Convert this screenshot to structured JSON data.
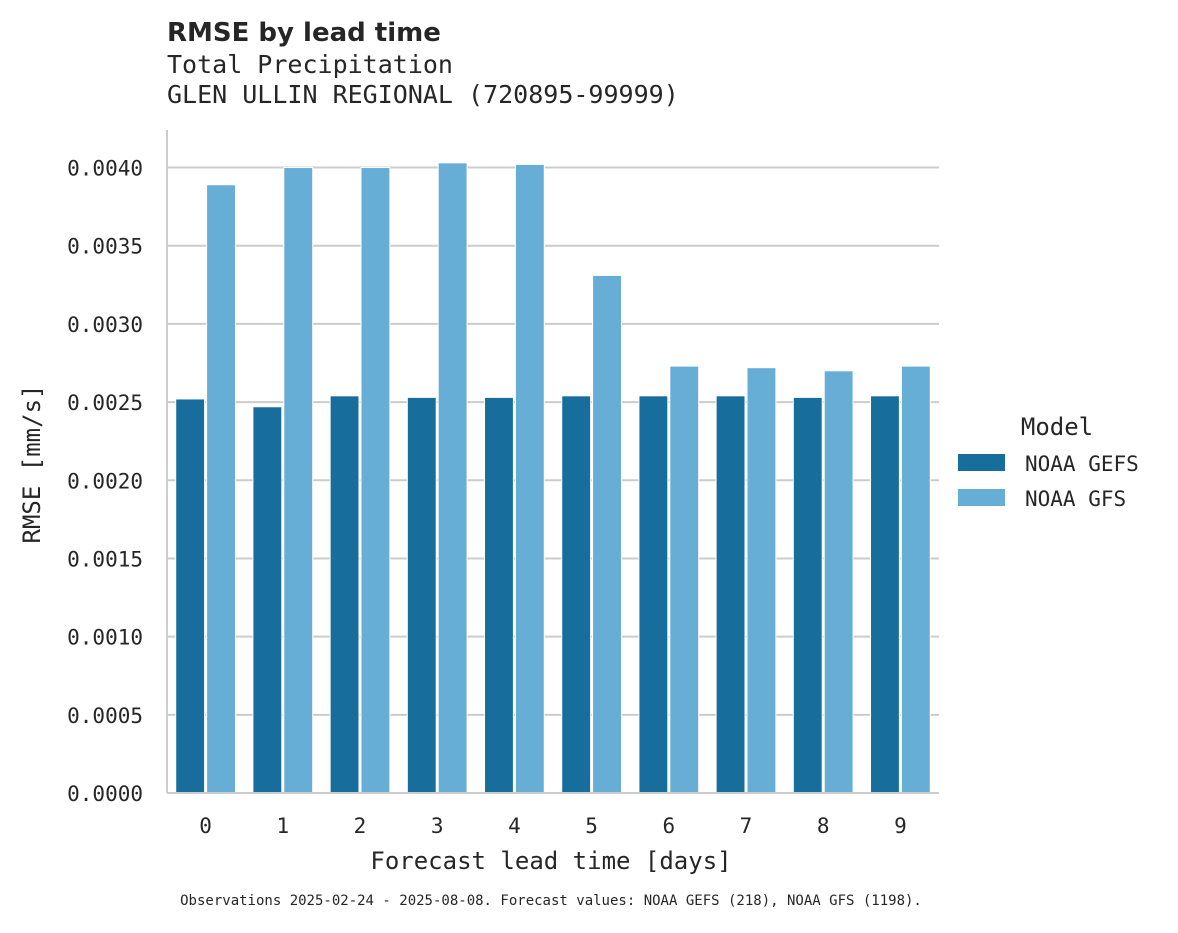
{
  "chart_data": {
    "type": "bar",
    "title": "RMSE by lead time",
    "subtitle_lines": [
      "Total Precipitation",
      "GLEN ULLIN REGIONAL (720895-99999)"
    ],
    "xlabel": "Forecast lead time [days]",
    "ylabel": "RMSE [mm/s]",
    "categories": [
      "0",
      "1",
      "2",
      "3",
      "4",
      "5",
      "6",
      "7",
      "8",
      "9"
    ],
    "series": [
      {
        "name": "NOAA GEFS",
        "color": "#176d9c",
        "values": [
          0.00252,
          0.00247,
          0.00254,
          0.00253,
          0.00253,
          0.00254,
          0.00254,
          0.00254,
          0.00253,
          0.00254
        ]
      },
      {
        "name": "NOAA GFS",
        "color": "#67aed6",
        "values": [
          0.00389,
          0.004,
          0.004,
          0.00403,
          0.00402,
          0.00331,
          0.00273,
          0.00272,
          0.0027,
          0.00273
        ]
      }
    ],
    "ylim": [
      0,
      0.00424
    ],
    "yticks": [
      "0.0000",
      "0.0005",
      "0.0010",
      "0.0015",
      "0.0020",
      "0.0025",
      "0.0030",
      "0.0035",
      "0.0040"
    ],
    "grid": "horizontal",
    "legend": {
      "title": "Model",
      "placement": "center-right"
    },
    "footnote": "Observations 2025-02-24 - 2025-08-08. Forecast values: NOAA GEFS (218), NOAA GFS (1198)."
  }
}
